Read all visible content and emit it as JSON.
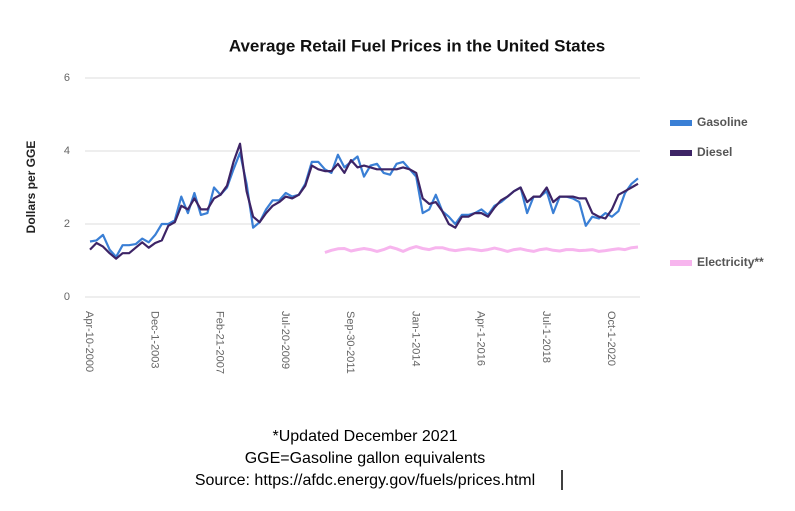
{
  "chart_data": {
    "type": "line",
    "title": "Average Retail Fuel Prices in the United States",
    "y_label": "Dollars per GGE",
    "ylim": [
      0,
      6
    ],
    "yticks": [
      0,
      2,
      4,
      6
    ],
    "grid": true,
    "legend": "right",
    "categories": [
      "Apr-10-2000",
      null,
      null,
      null,
      null,
      null,
      null,
      null,
      null,
      null,
      "Dec-1-2003",
      null,
      null,
      null,
      null,
      null,
      null,
      null,
      null,
      null,
      "Feb-21-2007",
      null,
      null,
      null,
      null,
      null,
      null,
      null,
      null,
      null,
      "Jul-20-2009",
      null,
      null,
      null,
      null,
      null,
      null,
      null,
      null,
      null,
      "Sep-30-2011",
      null,
      null,
      null,
      null,
      null,
      null,
      null,
      null,
      null,
      "Jan-1-2014",
      null,
      null,
      null,
      null,
      null,
      null,
      null,
      null,
      null,
      "Apr-1-2016",
      null,
      null,
      null,
      null,
      null,
      null,
      null,
      null,
      null,
      "Jul-1-2018",
      null,
      null,
      null,
      null,
      null,
      null,
      null,
      null,
      null,
      "Oct-1-2020",
      null,
      null,
      null,
      null
    ],
    "series": [
      {
        "name": "Gasoline",
        "color": "#3a7fd5",
        "values": [
          1.52,
          1.55,
          1.7,
          1.3,
          1.1,
          1.42,
          1.42,
          1.45,
          1.6,
          1.5,
          1.7,
          2.0,
          2.0,
          2.1,
          2.75,
          2.3,
          2.85,
          2.25,
          2.3,
          3.0,
          2.8,
          3.0,
          3.5,
          3.95,
          3.1,
          1.9,
          2.05,
          2.4,
          2.65,
          2.65,
          2.85,
          2.75,
          2.8,
          3.1,
          3.7,
          3.7,
          3.5,
          3.4,
          3.9,
          3.55,
          3.7,
          3.85,
          3.3,
          3.6,
          3.65,
          3.4,
          3.35,
          3.65,
          3.7,
          3.5,
          3.3,
          2.3,
          2.4,
          2.8,
          2.35,
          2.2,
          2.0,
          2.25,
          2.25,
          2.3,
          2.4,
          2.25,
          2.5,
          2.6,
          2.75,
          2.9,
          3.0,
          2.3,
          2.75,
          2.75,
          2.9,
          2.3,
          2.75,
          2.75,
          2.7,
          2.6,
          1.95,
          2.2,
          2.15,
          2.3,
          2.2,
          2.35,
          2.85,
          3.1,
          3.25
        ]
      },
      {
        "name": "Diesel",
        "color": "#3d2466",
        "values": [
          1.3,
          1.48,
          1.38,
          1.2,
          1.05,
          1.2,
          1.2,
          1.35,
          1.5,
          1.35,
          1.48,
          1.55,
          1.95,
          2.05,
          2.5,
          2.4,
          2.7,
          2.4,
          2.4,
          2.7,
          2.8,
          3.05,
          3.7,
          4.2,
          2.9,
          2.2,
          2.05,
          2.3,
          2.5,
          2.6,
          2.75,
          2.7,
          2.8,
          3.05,
          3.6,
          3.5,
          3.45,
          3.45,
          3.65,
          3.4,
          3.75,
          3.55,
          3.6,
          3.55,
          3.5,
          3.5,
          3.5,
          3.5,
          3.55,
          3.5,
          3.4,
          2.7,
          2.55,
          2.6,
          2.35,
          2.0,
          1.9,
          2.2,
          2.2,
          2.3,
          2.3,
          2.2,
          2.45,
          2.65,
          2.75,
          2.9,
          3.0,
          2.6,
          2.75,
          2.75,
          3.0,
          2.6,
          2.75,
          2.75,
          2.75,
          2.7,
          2.7,
          2.3,
          2.2,
          2.15,
          2.4,
          2.8,
          2.9,
          3.0,
          3.1
        ]
      },
      {
        "name": "Electricity**",
        "color": "#f7b5ee",
        "values": [
          null,
          null,
          null,
          null,
          null,
          null,
          null,
          null,
          null,
          null,
          null,
          null,
          null,
          null,
          null,
          null,
          null,
          null,
          null,
          null,
          null,
          null,
          null,
          null,
          null,
          null,
          null,
          null,
          null,
          null,
          null,
          null,
          null,
          null,
          null,
          null,
          1.22,
          1.28,
          1.32,
          1.33,
          1.26,
          1.3,
          1.33,
          1.3,
          1.25,
          1.3,
          1.37,
          1.32,
          1.25,
          1.33,
          1.38,
          1.33,
          1.3,
          1.35,
          1.35,
          1.3,
          1.27,
          1.3,
          1.32,
          1.3,
          1.27,
          1.3,
          1.34,
          1.3,
          1.25,
          1.3,
          1.32,
          1.28,
          1.25,
          1.3,
          1.32,
          1.28,
          1.26,
          1.3,
          1.3,
          1.27,
          1.28,
          1.3,
          1.25,
          1.27,
          1.3,
          1.32,
          1.3,
          1.35,
          1.37
        ]
      }
    ],
    "notes": [
      "*Updated December 2021",
      "GGE=Gasoline gallon equivalents",
      "Source: https://afdc.energy.gov/fuels/prices.html"
    ]
  }
}
